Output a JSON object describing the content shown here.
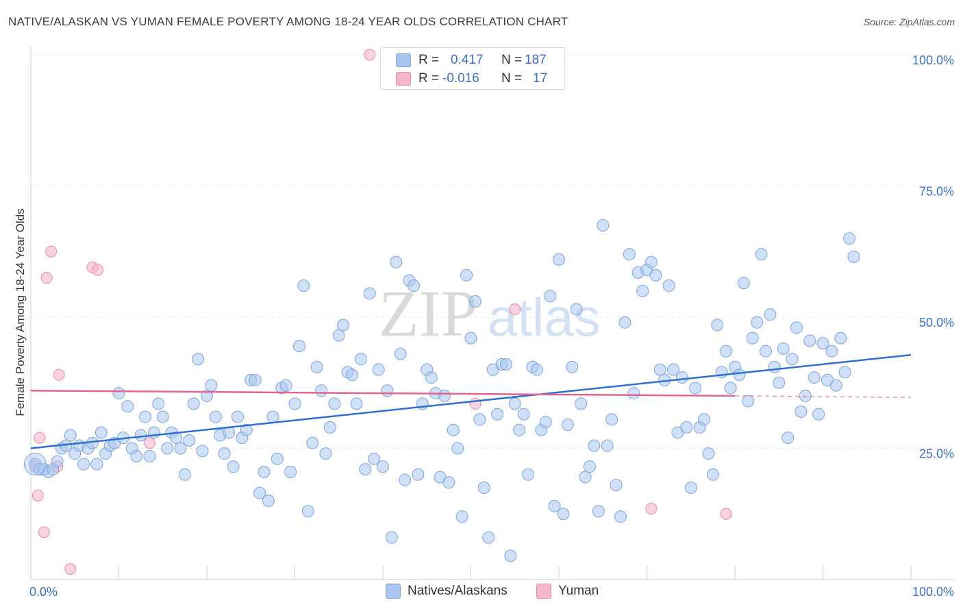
{
  "title": "NATIVE/ALASKAN VS YUMAN FEMALE POVERTY AMONG 18-24 YEAR OLDS CORRELATION CHART",
  "source": "Source: ZipAtlas.com",
  "watermark": {
    "zip": "ZIP",
    "atlas": "atlas"
  },
  "colors": {
    "blue_fill": "#a9c6f0",
    "blue_stroke": "#7ca3dc",
    "blue_line": "#2e6fd0",
    "pink_fill": "#f5b8cb",
    "pink_stroke": "#e98aa8",
    "pink_line": "#e2648f",
    "tick_label": "#3a6fc8"
  },
  "legend": {
    "rows": [
      {
        "r_label": "R =",
        "r_value": "0.417",
        "n_label": "N =",
        "n_value": "187"
      },
      {
        "r_label": "R =",
        "r_value": "-0.016",
        "n_label": "N =",
        "n_value": "17"
      }
    ]
  },
  "bottom_legend": [
    "Natives/Alaskans",
    "Yuman"
  ],
  "chart_data": {
    "type": "scatter",
    "title": "NATIVE/ALASKAN VS YUMAN FEMALE POVERTY AMONG 18-24 YEAR OLDS CORRELATION CHART",
    "xlabel": "",
    "ylabel": "Female Poverty Among 18-24 Year Olds",
    "xlim": [
      0,
      100
    ],
    "ylim": [
      0,
      100
    ],
    "x_tick_labels": [
      {
        "value": 0,
        "label": "0.0%"
      },
      {
        "value": 100,
        "label": "100.0%"
      }
    ],
    "y_tick_labels": [
      {
        "value": 25,
        "label": "25.0%"
      },
      {
        "value": 50,
        "label": "50.0%"
      },
      {
        "value": 75,
        "label": "75.0%"
      },
      {
        "value": 100,
        "label": "100.0%"
      }
    ],
    "grid": true,
    "legend_position": "top-center",
    "series": [
      {
        "name": "Natives/Alaskans",
        "r": 0.417,
        "n": 187,
        "trend": {
          "x": [
            0,
            100
          ],
          "y": [
            25,
            42.8
          ]
        },
        "points": [
          [
            0.5,
            22
          ],
          [
            1,
            21
          ],
          [
            1.5,
            21
          ],
          [
            2,
            20.5
          ],
          [
            2.5,
            21
          ],
          [
            3,
            22.5
          ],
          [
            3.5,
            25
          ],
          [
            4,
            25.5
          ],
          [
            4.5,
            27.5
          ],
          [
            5,
            24
          ],
          [
            5.5,
            25.5
          ],
          [
            6,
            22
          ],
          [
            6.5,
            25
          ],
          [
            7,
            26
          ],
          [
            7.5,
            22
          ],
          [
            8,
            28
          ],
          [
            8.5,
            24
          ],
          [
            9,
            25.5
          ],
          [
            9.5,
            26
          ],
          [
            10,
            35.5
          ],
          [
            10.5,
            27
          ],
          [
            11,
            33
          ],
          [
            11.5,
            25
          ],
          [
            12,
            23.5
          ],
          [
            12.5,
            27.5
          ],
          [
            13,
            31
          ],
          [
            13.5,
            23.5
          ],
          [
            14,
            28
          ],
          [
            14.5,
            33.5
          ],
          [
            15,
            31
          ],
          [
            15.5,
            25
          ],
          [
            16,
            28
          ],
          [
            16.5,
            27
          ],
          [
            17,
            25
          ],
          [
            17.5,
            20
          ],
          [
            18,
            26.5
          ],
          [
            18.5,
            33.5
          ],
          [
            19,
            42
          ],
          [
            19.5,
            24.5
          ],
          [
            20,
            35
          ],
          [
            20.5,
            37
          ],
          [
            21,
            31
          ],
          [
            21.5,
            27.5
          ],
          [
            22,
            24
          ],
          [
            22.5,
            28
          ],
          [
            23,
            21.5
          ],
          [
            23.5,
            31
          ],
          [
            24,
            27
          ],
          [
            24.5,
            28.5
          ],
          [
            25,
            38
          ],
          [
            25.5,
            38
          ],
          [
            26,
            16.5
          ],
          [
            26.5,
            20.5
          ],
          [
            27,
            15
          ],
          [
            27.5,
            31
          ],
          [
            28,
            23
          ],
          [
            28.5,
            36.5
          ],
          [
            29,
            37
          ],
          [
            29.5,
            20.5
          ],
          [
            30,
            33.5
          ],
          [
            30.5,
            44.5
          ],
          [
            31,
            56
          ],
          [
            31.5,
            13
          ],
          [
            32,
            26
          ],
          [
            32.5,
            40.5
          ],
          [
            33,
            36
          ],
          [
            33.5,
            24
          ],
          [
            34,
            29
          ],
          [
            34.5,
            33.5
          ],
          [
            35,
            46.5
          ],
          [
            35.5,
            48.5
          ],
          [
            36,
            39.5
          ],
          [
            36.5,
            39
          ],
          [
            37,
            33.5
          ],
          [
            37.5,
            42
          ],
          [
            38,
            21
          ],
          [
            38.5,
            54.5
          ],
          [
            39,
            23
          ],
          [
            39.5,
            40
          ],
          [
            40,
            21.5
          ],
          [
            40.5,
            36
          ],
          [
            41,
            8
          ],
          [
            41.5,
            60.5
          ],
          [
            42,
            43
          ],
          [
            42.5,
            19
          ],
          [
            43,
            57
          ],
          [
            43.5,
            56
          ],
          [
            44,
            20
          ],
          [
            44.5,
            33.5
          ],
          [
            45,
            40
          ],
          [
            45.5,
            38.5
          ],
          [
            46,
            35.5
          ],
          [
            46.5,
            19.5
          ],
          [
            47,
            35
          ],
          [
            47.5,
            18.5
          ],
          [
            48,
            28.5
          ],
          [
            48.5,
            25
          ],
          [
            49,
            12
          ],
          [
            49.5,
            58
          ],
          [
            50,
            46
          ],
          [
            50.5,
            53
          ],
          [
            51,
            30.5
          ],
          [
            51.5,
            17.5
          ],
          [
            52,
            8
          ],
          [
            52.5,
            40
          ],
          [
            53,
            31.5
          ],
          [
            53.5,
            41
          ],
          [
            54,
            41
          ],
          [
            54.5,
            4.5
          ],
          [
            55,
            33.5
          ],
          [
            55.5,
            28.5
          ],
          [
            56,
            31.5
          ],
          [
            56.5,
            20
          ],
          [
            57,
            40.5
          ],
          [
            57.5,
            40
          ],
          [
            58,
            28.5
          ],
          [
            58.5,
            30
          ],
          [
            59,
            54
          ],
          [
            59.5,
            14
          ],
          [
            60,
            61
          ],
          [
            60.5,
            12.5
          ],
          [
            61,
            29.5
          ],
          [
            61.5,
            40.5
          ],
          [
            62,
            51.5
          ],
          [
            62.5,
            33.5
          ],
          [
            63,
            19.5
          ],
          [
            63.5,
            21.5
          ],
          [
            64,
            25.5
          ],
          [
            64.5,
            13
          ],
          [
            65,
            67.5
          ],
          [
            65.5,
            25.5
          ],
          [
            66,
            30.5
          ],
          [
            66.5,
            18
          ],
          [
            67,
            12
          ],
          [
            67.5,
            49
          ],
          [
            68,
            62
          ],
          [
            68.5,
            35.5
          ],
          [
            69,
            58.5
          ],
          [
            69.5,
            55
          ],
          [
            70,
            59
          ],
          [
            70.5,
            60.5
          ],
          [
            71,
            58
          ],
          [
            71.5,
            40
          ],
          [
            72,
            38
          ],
          [
            72.5,
            56
          ],
          [
            73,
            40
          ],
          [
            73.5,
            28
          ],
          [
            74,
            38.5
          ],
          [
            74.5,
            29
          ],
          [
            75,
            17.5
          ],
          [
            75.5,
            36.5
          ],
          [
            76,
            29
          ],
          [
            76.5,
            30.5
          ],
          [
            77,
            24
          ],
          [
            77.5,
            20
          ],
          [
            78,
            48.5
          ],
          [
            78.5,
            39.5
          ],
          [
            79,
            43.5
          ],
          [
            79.5,
            36.5
          ],
          [
            80,
            40.5
          ],
          [
            80.5,
            39
          ],
          [
            81,
            56.5
          ],
          [
            81.5,
            34
          ],
          [
            82,
            46
          ],
          [
            82.5,
            49
          ],
          [
            83,
            62
          ],
          [
            83.5,
            43.5
          ],
          [
            84,
            50.5
          ],
          [
            84.5,
            40.5
          ],
          [
            85,
            37.5
          ],
          [
            85.5,
            44
          ],
          [
            86,
            27
          ],
          [
            86.5,
            42
          ],
          [
            87,
            48
          ],
          [
            87.5,
            32
          ],
          [
            88,
            35
          ],
          [
            88.5,
            45.5
          ],
          [
            89,
            38.5
          ],
          [
            89.5,
            31.5
          ],
          [
            90,
            45
          ],
          [
            90.5,
            38
          ],
          [
            91,
            43.5
          ],
          [
            91.5,
            37
          ],
          [
            92,
            46
          ],
          [
            92.5,
            39.5
          ],
          [
            93,
            65
          ],
          [
            93.5,
            61.5
          ]
        ]
      },
      {
        "name": "Yuman",
        "r": -0.016,
        "n": 17,
        "trend": {
          "x": [
            0,
            80
          ],
          "y": [
            36,
            35
          ]
        },
        "trend_dashed": {
          "x": [
            80,
            100
          ],
          "y": [
            35,
            34.7
          ]
        },
        "points": [
          [
            0.5,
            21.5
          ],
          [
            0.8,
            16
          ],
          [
            1,
            27
          ],
          [
            1.5,
            9
          ],
          [
            1.8,
            57.5
          ],
          [
            2.3,
            62.5
          ],
          [
            3,
            21.5
          ],
          [
            3.2,
            39
          ],
          [
            4.5,
            2
          ],
          [
            7,
            59.5
          ],
          [
            7.6,
            59
          ],
          [
            13.5,
            26
          ],
          [
            38.5,
            100
          ],
          [
            50.5,
            33.5
          ],
          [
            55,
            51.5
          ],
          [
            70.5,
            13.5
          ],
          [
            79,
            12.5
          ]
        ]
      }
    ]
  }
}
